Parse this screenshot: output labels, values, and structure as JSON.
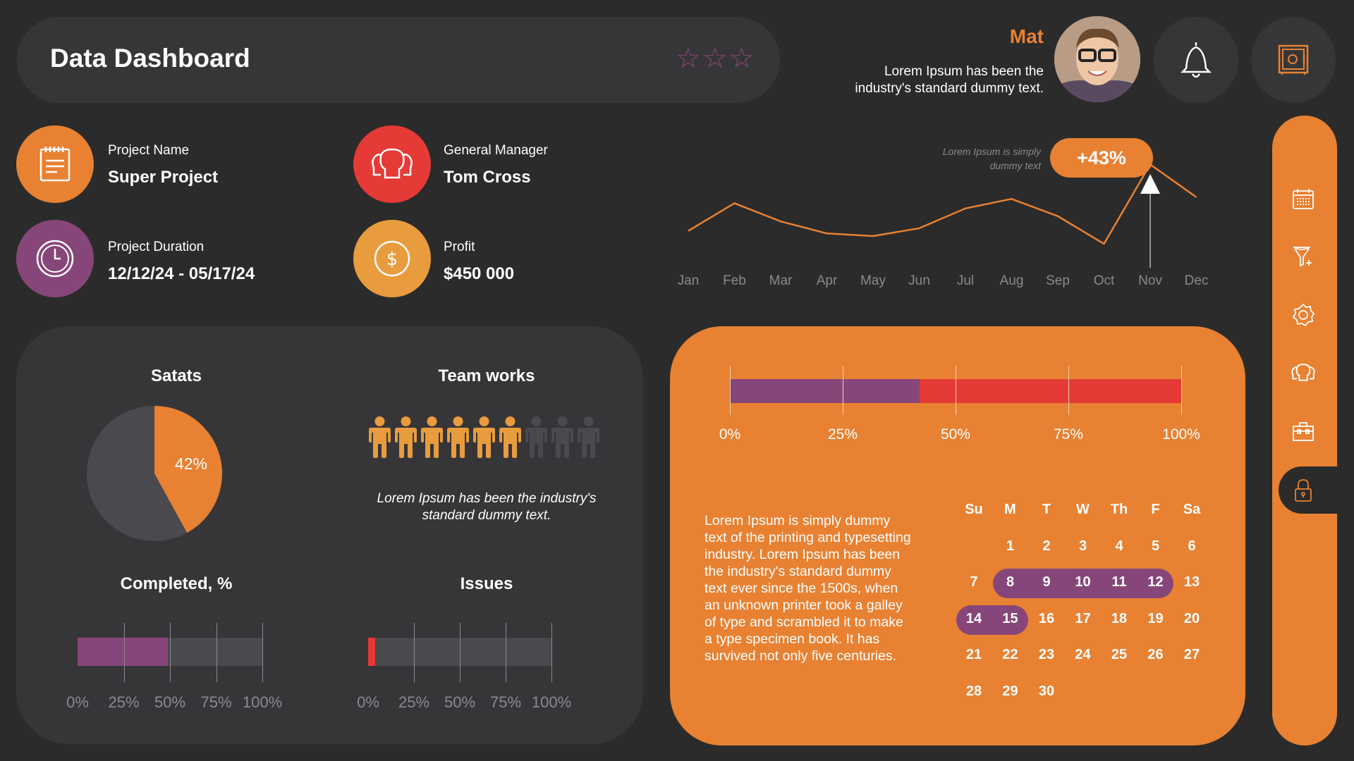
{
  "header": {
    "title": "Data Dashboard",
    "rating": 0,
    "rating_max": 3
  },
  "user": {
    "name": "Mat",
    "subtitle_line1": "Lorem Ipsum has been the",
    "subtitle_line2": "industry's standard dummy text."
  },
  "info": [
    {
      "label": "Project Name",
      "value": "Super Project",
      "icon": "notepad-icon",
      "color": "#e88132"
    },
    {
      "label": "General Manager",
      "value": "Tom Cross",
      "icon": "team-icon",
      "color": "#e53a36"
    },
    {
      "label": "Project Duration",
      "value": "12/12/24 - 05/17/24",
      "icon": "clock-icon",
      "color": "#874679"
    },
    {
      "label": "Profit",
      "value": "$450 000",
      "icon": "dollar-icon",
      "color": "#e89c3e"
    }
  ],
  "colors": {
    "background": "#2b2b2b",
    "panel": "#363638",
    "orange": "#e88132",
    "purple": "#874679",
    "red": "#e53a36",
    "gold": "#e89c3e",
    "track": "#4a494e"
  },
  "chart_data": [
    {
      "type": "line",
      "categories": [
        "Jan",
        "Feb",
        "Mar",
        "Apr",
        "May",
        "Jun",
        "Jul",
        "Aug",
        "Sep",
        "Oct",
        "Nov",
        "Dec"
      ],
      "values": [
        35,
        67,
        46,
        32,
        29,
        38,
        61,
        72,
        52,
        20,
        112,
        74
      ],
      "annotation": {
        "category": "Nov",
        "label": "+43%",
        "note_line1": "Lorem Ipsum is simply",
        "note_line2": "dummy text"
      },
      "grid": false
    },
    {
      "type": "pie",
      "title": "Satats",
      "values": [
        42,
        58
      ],
      "label": "42%"
    },
    {
      "type": "bar",
      "title": "Completed, %",
      "value": 49,
      "ticks": [
        "0%",
        "25%",
        "50%",
        "75%",
        "100%"
      ],
      "xlim": [
        0,
        100
      ]
    },
    {
      "type": "bar",
      "title": "Issues",
      "value": 4,
      "ticks": [
        "0%",
        "25%",
        "50%",
        "75%",
        "100%"
      ],
      "xlim": [
        0,
        100
      ]
    },
    {
      "type": "bar",
      "stacked": true,
      "values": [
        42,
        58
      ],
      "ticks": [
        "0%",
        "25%",
        "50%",
        "75%",
        "100%"
      ],
      "xlim": [
        0,
        100
      ]
    }
  ],
  "team": {
    "title": "Team works",
    "active": 6,
    "total": 9,
    "text_line1": "Lorem Ipsum has been the industry's",
    "text_line2": "standard dummy text."
  },
  "description": "Lorem Ipsum is simply dummy text of the printing and typesetting industry. Lorem Ipsum has been the industry's standard dummy text ever since the 1500s, when an unknown printer took a galley of type and scrambled it to make a type specimen book. It has survived not only five centuries.",
  "calendar": {
    "weekdays": [
      "Su",
      "M",
      "T",
      "W",
      "Th",
      "F",
      "Sa"
    ],
    "first_weekday": 1,
    "days": 30,
    "highlights": [
      [
        8,
        12
      ],
      [
        14,
        15
      ]
    ]
  },
  "sidebar": {
    "items": [
      "calendar-icon",
      "filter-icon",
      "gear-icon",
      "team-icon",
      "toolbox-icon",
      "lock-icon"
    ],
    "active": 5
  }
}
